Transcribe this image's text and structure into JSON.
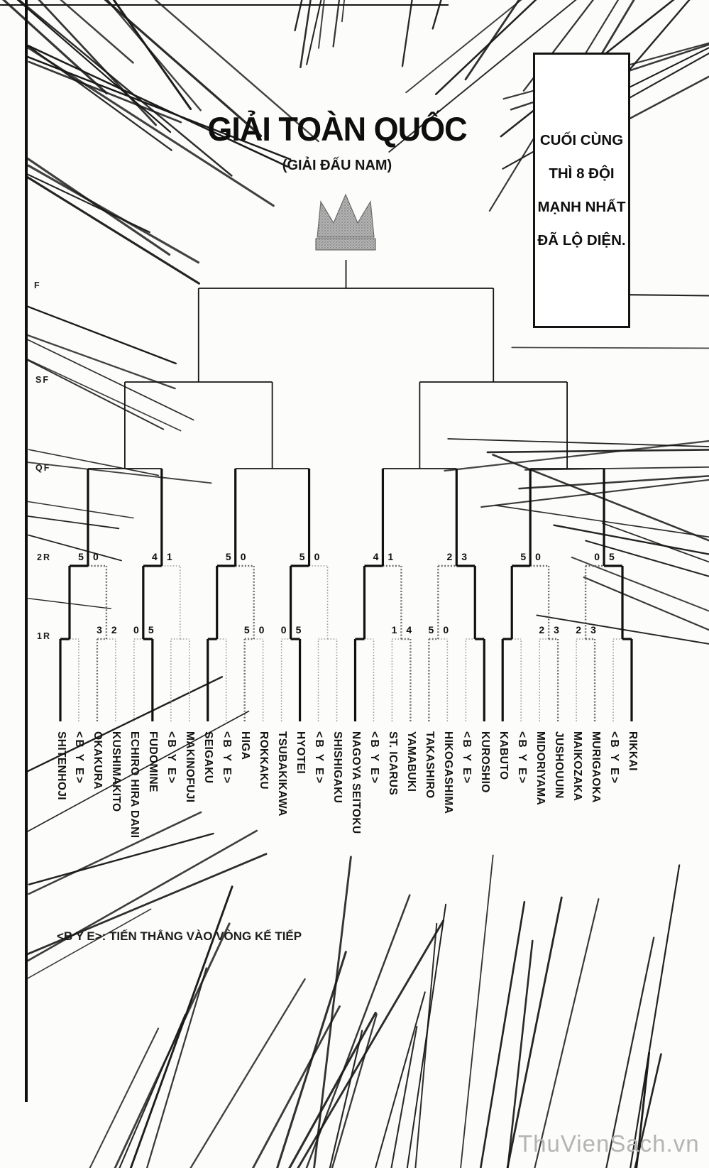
{
  "title": "GIẢI TOÀN QUỐC",
  "subtitle": "(GIẢI ĐẤU NAM)",
  "narration_box": {
    "lines": [
      "CUỐI CÙNG",
      "THÌ 8 ĐỘI",
      "MẠNH NHẤT",
      "ĐÃ LỘ DIỆN."
    ]
  },
  "round_labels": [
    "F",
    "SF",
    "QF",
    "2R",
    "1R"
  ],
  "legend": "<B Y E>: TIẾN THẲNG VÀO VÒNG KẾ TIẾP",
  "watermark": "ThuVienSach.vn",
  "bye_label": "<B Y E>",
  "icons": {
    "crown_icon": "champion-crown"
  },
  "colors": {
    "ink": "#111111",
    "dotted_dark": "#6e6e6e",
    "dotted_light": "#9d9d9d",
    "crown_tone": "#b5b5b5",
    "watermark_gray": "#b4b4b4"
  },
  "bracket": {
    "type": "single-elimination-32",
    "slots": [
      {
        "name": "SHITENHOJI"
      },
      {
        "name": "<B Y E>",
        "bye": true
      },
      {
        "name": "OKAKURA"
      },
      {
        "name": "KUSHIMAKITO"
      },
      {
        "name": "ECHIRO HIRA DANI"
      },
      {
        "name": "FUDOMINE"
      },
      {
        "name": "<B Y E>",
        "bye": true
      },
      {
        "name": "MAKINOFUJI"
      },
      {
        "name": "SEIGAKU"
      },
      {
        "name": "<B Y E>",
        "bye": true
      },
      {
        "name": "HIGA"
      },
      {
        "name": "ROKKAKU"
      },
      {
        "name": "TSUBAKIKAWA"
      },
      {
        "name": "HYOTEI"
      },
      {
        "name": "<B Y E>",
        "bye": true
      },
      {
        "name": "SHISHIGAKU"
      },
      {
        "name": "NAGOYA SEITOKU"
      },
      {
        "name": "<B Y E>",
        "bye": true
      },
      {
        "name": "ST. ICARUS"
      },
      {
        "name": "YAMABUKI"
      },
      {
        "name": "TAKASHIRO"
      },
      {
        "name": "HIKOGASHIMA"
      },
      {
        "name": "<B Y E>",
        "bye": true
      },
      {
        "name": "KUROSHIO"
      },
      {
        "name": "KABUTO"
      },
      {
        "name": "<B Y E>",
        "bye": true
      },
      {
        "name": "MIDORIYAMA"
      },
      {
        "name": "JUSHOUUIN"
      },
      {
        "name": "MAIKOZAKA"
      },
      {
        "name": "MURIGAOKA"
      },
      {
        "name": "<B Y E>",
        "bye": true
      },
      {
        "name": "RIKKAI"
      }
    ],
    "round1": [
      {
        "left": "OKAKURA",
        "right": "KUSHIMAKITO",
        "score": [
          3,
          2
        ],
        "winner": "OKAKURA"
      },
      {
        "left": "ECHIRO HIRA DANI",
        "right": "FUDOMINE",
        "score": [
          0,
          5
        ],
        "winner": "FUDOMINE"
      },
      {
        "left": "HIGA",
        "right": "ROKKAKU",
        "score": [
          5,
          0
        ],
        "winner": "HIGA"
      },
      {
        "left": "TSUBAKIKAWA",
        "right": "HYOTEI",
        "score": [
          0,
          5
        ],
        "winner": "HYOTEI"
      },
      {
        "left": "ST. ICARUS",
        "right": "YAMABUKI",
        "score": [
          1,
          4
        ],
        "winner": "YAMABUKI"
      },
      {
        "left": "TAKASHIRO",
        "right": "HIKOGASHIMA",
        "score": [
          5,
          0
        ],
        "winner": "TAKASHIRO"
      },
      {
        "left": "MIDORIYAMA",
        "right": "JUSHOUUIN",
        "score": [
          2,
          3
        ],
        "winner": "JUSHOUUIN"
      },
      {
        "left": "MAIKOZAKA",
        "right": "MURIGAOKA",
        "score": [
          2,
          3
        ],
        "winner": "MURIGAOKA"
      }
    ],
    "round2": [
      {
        "left": "SHITENHOJI",
        "right": "OKAKURA",
        "score": [
          5,
          0
        ],
        "winner": "SHITENHOJI"
      },
      {
        "left": "FUDOMINE",
        "right": "MAKINOFUJI",
        "score": [
          4,
          1
        ],
        "winner": "FUDOMINE"
      },
      {
        "left": "SEIGAKU",
        "right": "HIGA",
        "score": [
          5,
          0
        ],
        "winner": "SEIGAKU"
      },
      {
        "left": "HYOTEI",
        "right": "SHISHIGAKU",
        "score": [
          5,
          0
        ],
        "winner": "HYOTEI"
      },
      {
        "left": "NAGOYA SEITOKU",
        "right": "YAMABUKI",
        "score": [
          4,
          1
        ],
        "winner": "NAGOYA SEITOKU"
      },
      {
        "left": "TAKASHIRO",
        "right": "KUROSHIO",
        "score": [
          2,
          3
        ],
        "winner": "KUROSHIO"
      },
      {
        "left": "KABUTO",
        "right": "JUSHOUUIN",
        "score": [
          5,
          0
        ],
        "winner": "KABUTO"
      },
      {
        "left": "MURIGAOKA",
        "right": "RIKKAI",
        "score": [
          0,
          5
        ],
        "winner": "RIKKAI"
      }
    ],
    "quarterfinalists": [
      "SHITENHOJI",
      "FUDOMINE",
      "SEIGAKU",
      "HYOTEI",
      "NAGOYA SEITOKU",
      "KUROSHIO",
      "KABUTO",
      "RIKKAI"
    ]
  }
}
